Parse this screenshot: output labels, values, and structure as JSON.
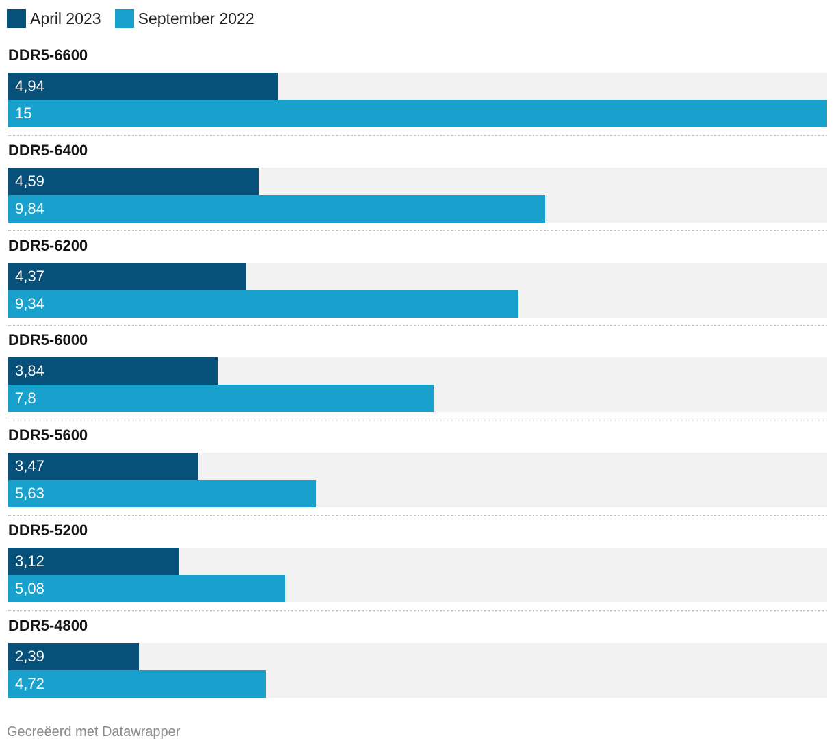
{
  "legend": [
    {
      "label": "April 2023",
      "color": "#07507a"
    },
    {
      "label": "September 2022",
      "color": "#18a1cd"
    }
  ],
  "chart_data": {
    "type": "bar",
    "orientation": "horizontal",
    "categories": [
      "DDR5-6600",
      "DDR5-6400",
      "DDR5-6200",
      "DDR5-6000",
      "DDR5-5600",
      "DDR5-5200",
      "DDR5-4800"
    ],
    "series": [
      {
        "name": "April 2023",
        "color": "#07507a",
        "values": [
          4.94,
          4.59,
          4.37,
          3.84,
          3.47,
          3.12,
          2.39
        ],
        "labels": [
          "4,94",
          "4,59",
          "4,37",
          "3,84",
          "3,47",
          "3,12",
          "2,39"
        ]
      },
      {
        "name": "September 2022",
        "color": "#18a1cd",
        "values": [
          15,
          9.84,
          9.34,
          7.8,
          5.63,
          5.08,
          4.72
        ],
        "labels": [
          "15",
          "9,84",
          "9,34",
          "7,8",
          "5,63",
          "5,08",
          "4,72"
        ]
      }
    ],
    "xlim": [
      0,
      15
    ],
    "title": "",
    "xlabel": "",
    "ylabel": "",
    "grid": false,
    "legend_position": "top-left"
  },
  "footer": {
    "credit": "Gecreëerd met Datawrapper"
  }
}
